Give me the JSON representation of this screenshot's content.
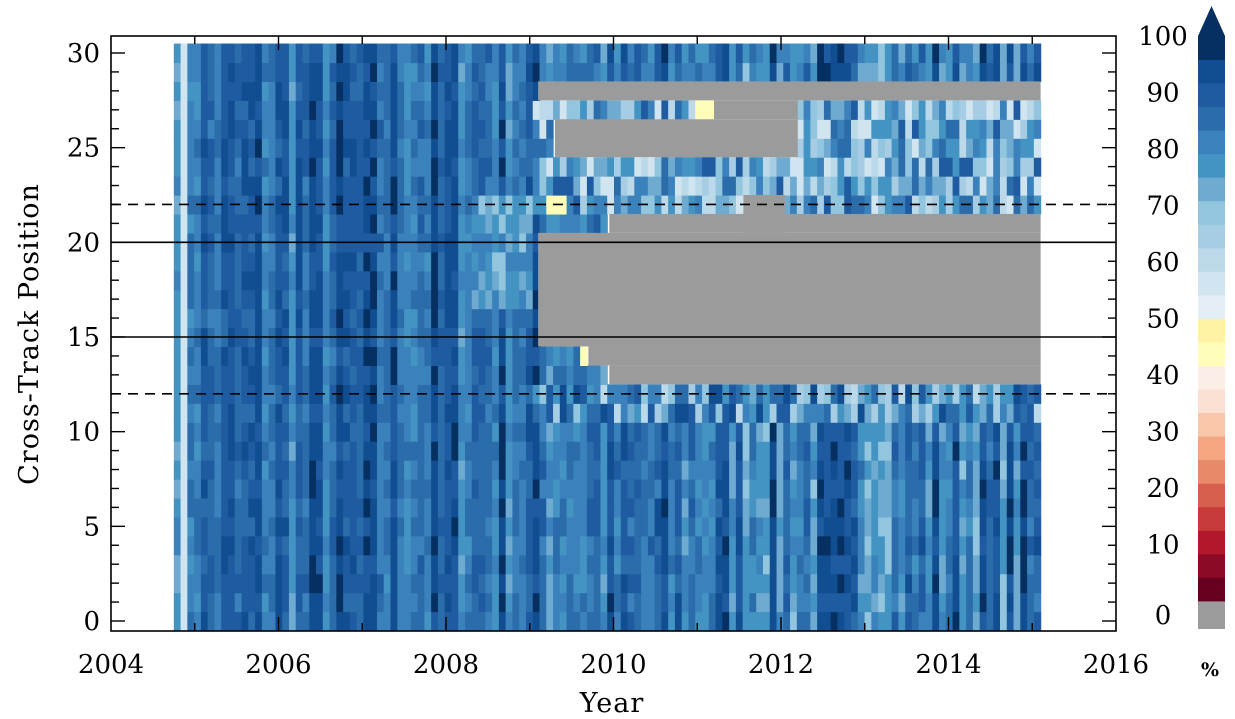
{
  "chart_data": {
    "type": "heatmap",
    "xlabel": "Year",
    "ylabel": "Cross-Track Position",
    "xlim": [
      2004,
      2016
    ],
    "ylim": [
      -0.5,
      30.5
    ],
    "x_ticks": [
      2004,
      2006,
      2008,
      2010,
      2012,
      2014,
      2016
    ],
    "y_ticks": [
      0,
      5,
      10,
      15,
      20,
      25,
      30
    ],
    "data_x_range": [
      2004.75,
      2015.1
    ],
    "data_y_range": [
      0,
      30
    ],
    "reference_lines": [
      {
        "y": 12,
        "style": "dashed"
      },
      {
        "y": 15,
        "style": "solid"
      },
      {
        "y": 20,
        "style": "solid"
      },
      {
        "y": 22,
        "style": "dashed"
      }
    ],
    "colorbar": {
      "unit_label": "%",
      "ticks": [
        0,
        10,
        20,
        30,
        40,
        50,
        60,
        70,
        80,
        90,
        100
      ],
      "missing_value_color": "#9b9b9b",
      "colors": [
        "#67001f",
        "#8b0a26",
        "#b2182b",
        "#c73a3a",
        "#d6604d",
        "#e8896c",
        "#f4a582",
        "#f8c6a8",
        "#fae0d2",
        "#fbeee6",
        "#fffdb8",
        "#fff2a4",
        "#e2edf5",
        "#d1e5f0",
        "#bcd9ea",
        "#a6cde3",
        "#92c5de",
        "#6fabd0",
        "#4393c3",
        "#3b82bc",
        "#2b6cab",
        "#1e5ba0",
        "#114e91",
        "#053061"
      ]
    },
    "regions": [
      {
        "x": [
          2009.1,
          2015.1
        ],
        "y": [
          27.5,
          28.5
        ],
        "value": "missing"
      },
      {
        "x": [
          2009.3,
          2012.2
        ],
        "y": [
          24.5,
          26.5
        ],
        "value": "missing"
      },
      {
        "x": [
          2011.2,
          2012.2
        ],
        "y": [
          26.5,
          27.5
        ],
        "value": "missing"
      },
      {
        "x": [
          2011.55,
          2012.05
        ],
        "y": [
          20.5,
          22.5
        ],
        "value": "missing"
      },
      {
        "x": [
          2009.95,
          2015.1
        ],
        "y": [
          20.5,
          21.5
        ],
        "value": "missing"
      },
      {
        "x": [
          2009.1,
          2015.1
        ],
        "y": [
          14.5,
          20.5
        ],
        "value": "missing"
      },
      {
        "x": [
          2009.7,
          2015.1
        ],
        "y": [
          13.5,
          14.5
        ],
        "value": "missing"
      },
      {
        "x": [
          2009.95,
          2015.1
        ],
        "y": [
          12.5,
          13.5
        ],
        "value": "missing"
      }
    ]
  }
}
